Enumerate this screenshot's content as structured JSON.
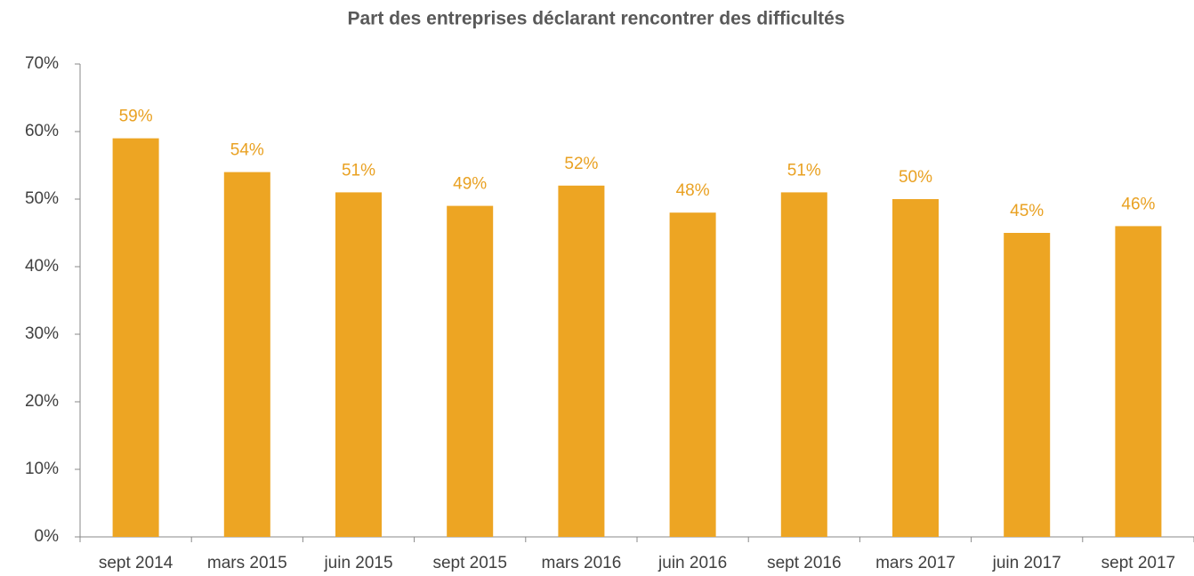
{
  "chart_data": {
    "type": "bar",
    "title": "Part des entreprises déclarant rencontrer des difficultés",
    "categories": [
      "sept 2014",
      "mars 2015",
      "juin 2015",
      "sept 2015",
      "mars 2016",
      "juin 2016",
      "sept 2016",
      "mars 2017",
      "juin 2017",
      "sept 2017"
    ],
    "values": [
      59,
      54,
      51,
      49,
      52,
      48,
      51,
      50,
      45,
      46
    ],
    "value_labels": [
      "59%",
      "54%",
      "51%",
      "49%",
      "52%",
      "48%",
      "51%",
      "50%",
      "45%",
      "46%"
    ],
    "color": "#EDA523",
    "ylim": [
      0,
      70
    ],
    "yticks": [
      {
        "value": 0,
        "label": "0%"
      },
      {
        "value": 10,
        "label": "10%"
      },
      {
        "value": 20,
        "label": "20%"
      },
      {
        "value": 30,
        "label": "30%"
      },
      {
        "value": 40,
        "label": "40%"
      },
      {
        "value": 50,
        "label": "50%"
      },
      {
        "value": 60,
        "label": "60%"
      },
      {
        "value": 70,
        "label": "70%"
      }
    ],
    "grid": false
  }
}
